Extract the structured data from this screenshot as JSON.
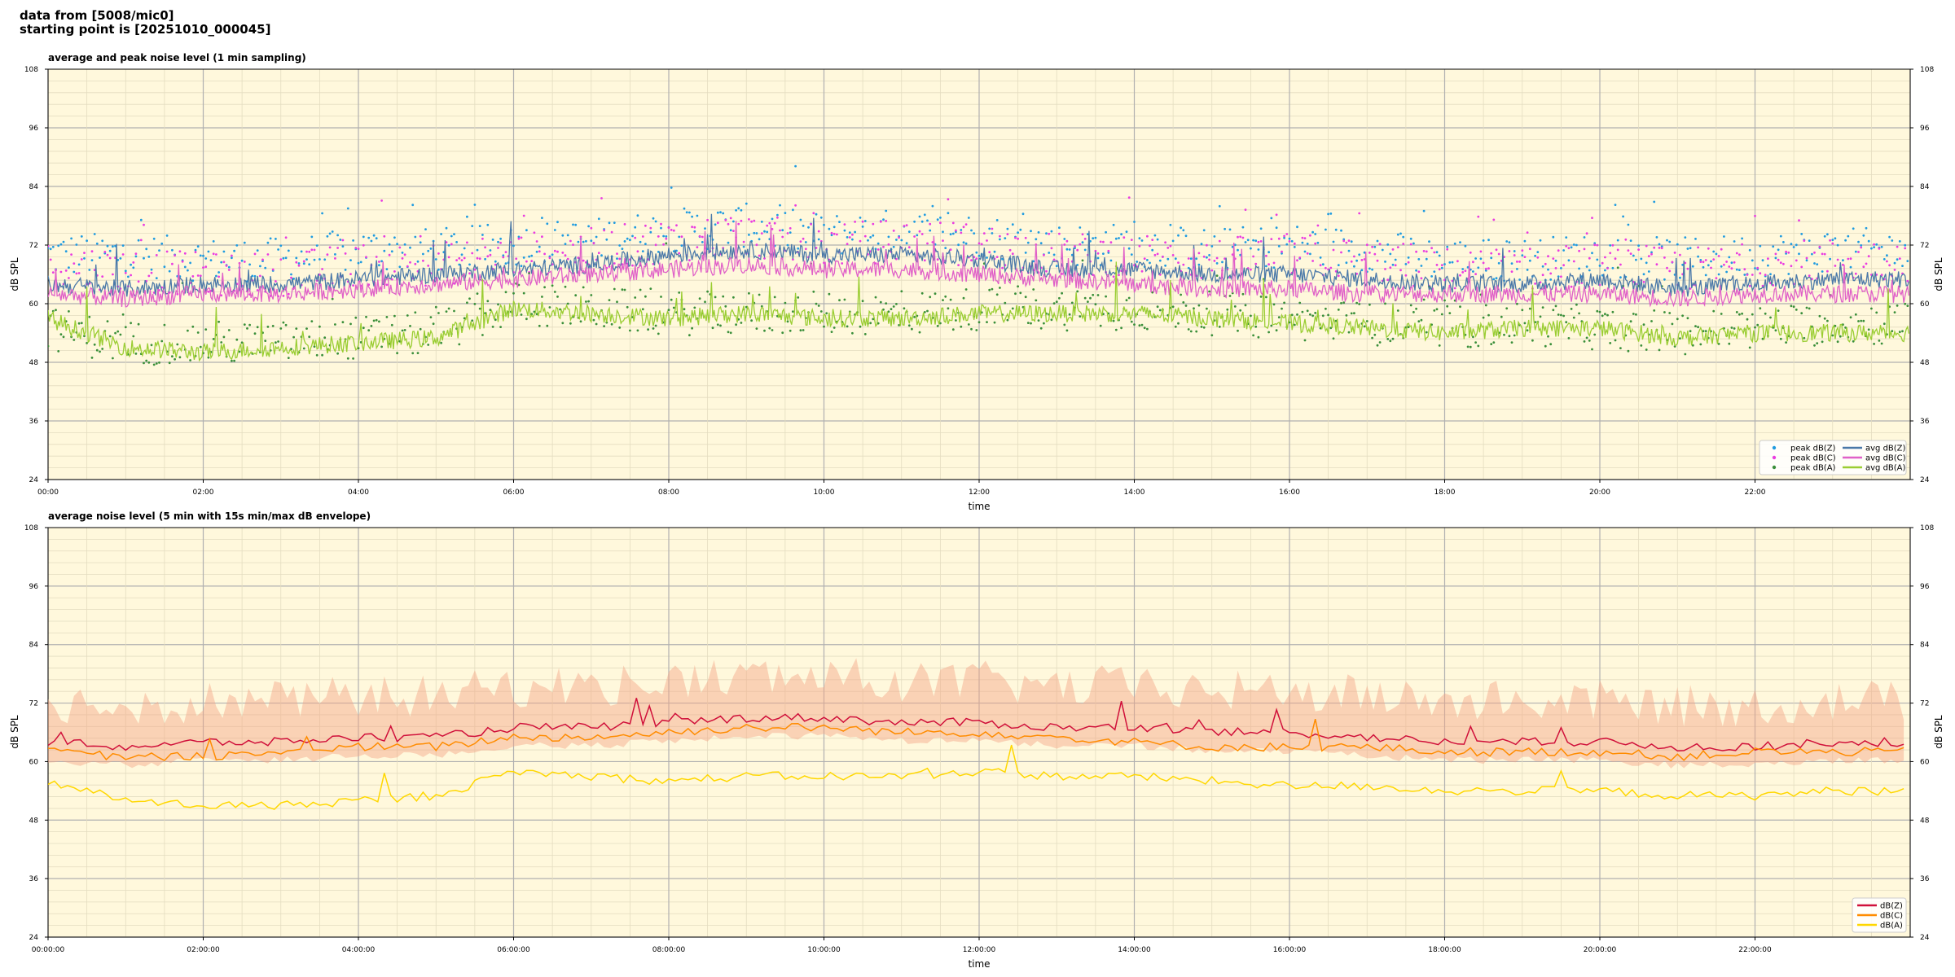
{
  "header": {
    "line1": "data from [5008/mic0]",
    "line2": "starting point is [20251010_000045]"
  },
  "colors": {
    "bg": "#fff8dc",
    "peak_z": "#1f9be0",
    "peak_c": "#ea3de0",
    "peak_a": "#3a8f3a",
    "avg_z": "#4a78a8",
    "avg_c": "#e060c8",
    "avg_a": "#9acd32",
    "dbz": "#d0103a",
    "dbc": "#ff8c00",
    "dba": "#ffd700",
    "envelope": "#f4a585"
  },
  "chart_data": [
    {
      "type": "line",
      "title": "average and peak noise level (1 min sampling)",
      "xlabel": "time",
      "ylabel": "dB SPL",
      "ylim": [
        24,
        108
      ],
      "xlim_hours": [
        0,
        24
      ],
      "grid": true,
      "legend_position": "lower-right",
      "xticks": [
        "00:00",
        "02:00",
        "04:00",
        "06:00",
        "08:00",
        "10:00",
        "12:00",
        "14:00",
        "16:00",
        "18:00",
        "20:00",
        "22:00"
      ],
      "yticks": [
        "24",
        "36",
        "48",
        "60",
        "72",
        "84",
        "96",
        "108"
      ],
      "series": [
        {
          "name": "peak dB(Z)",
          "kind": "scatter",
          "color_key": "peak_z",
          "base": [
            70,
            70,
            69,
            69,
            71,
            71,
            72,
            73,
            75,
            76,
            74,
            75,
            74,
            72,
            72,
            71,
            72,
            71,
            69,
            69,
            70,
            69,
            70,
            71
          ]
        },
        {
          "name": "peak dB(C)",
          "kind": "scatter",
          "color_key": "peak_c",
          "base": [
            68,
            67,
            66,
            66,
            68,
            68,
            70,
            71,
            73,
            74,
            72,
            73,
            72,
            70,
            70,
            69,
            70,
            69,
            67,
            67,
            68,
            67,
            68,
            69
          ]
        },
        {
          "name": "peak dB(A)",
          "kind": "scatter",
          "color_key": "peak_a",
          "base": [
            55,
            52,
            52,
            52,
            53,
            54,
            60,
            59,
            58,
            58,
            58,
            58,
            59,
            59,
            59,
            58,
            57,
            56,
            55,
            56,
            55,
            54,
            55,
            56
          ]
        },
        {
          "name": "avg dB(Z)",
          "kind": "line",
          "color_key": "avg_z",
          "base": [
            64,
            63,
            64,
            64,
            65,
            66,
            67,
            68,
            70,
            71,
            70,
            70,
            69,
            67,
            67,
            66,
            66,
            65,
            64,
            64,
            65,
            63,
            64,
            65
          ]
        },
        {
          "name": "avg dB(C)",
          "kind": "line",
          "color_key": "avg_c",
          "base": [
            62,
            61,
            62,
            62,
            63,
            64,
            65,
            66,
            67,
            68,
            67,
            67,
            66,
            65,
            64,
            63,
            63,
            62,
            62,
            62,
            62,
            61,
            62,
            62
          ]
        },
        {
          "name": "avg dB(A)",
          "kind": "line",
          "color_key": "avg_a",
          "base": [
            57,
            51,
            50,
            51,
            52,
            53,
            59,
            58,
            57,
            58,
            57,
            57,
            58,
            58,
            58,
            57,
            56,
            55,
            54,
            55,
            55,
            53,
            54,
            54
          ]
        }
      ]
    },
    {
      "type": "line",
      "title": "average noise level (5 min with 15s min/max dB envelope)",
      "xlabel": "time",
      "ylabel": "dB SPL",
      "ylim": [
        24,
        108
      ],
      "xlim_hours": [
        0,
        24
      ],
      "grid": true,
      "legend_position": "lower-right",
      "xticks": [
        "00:00:00",
        "02:00:00",
        "04:00:00",
        "06:00:00",
        "08:00:00",
        "10:00:00",
        "12:00:00",
        "14:00:00",
        "16:00:00",
        "18:00:00",
        "20:00:00",
        "22:00:00"
      ],
      "yticks": [
        "24",
        "36",
        "48",
        "60",
        "72",
        "84",
        "96",
        "108"
      ],
      "series": [
        {
          "name": "dB(Z)",
          "color_key": "dbz",
          "base": [
            64,
            63,
            64,
            64,
            65,
            65,
            67,
            67,
            68,
            69,
            69,
            68,
            68,
            67,
            67,
            66,
            66,
            65,
            64,
            64,
            64,
            63,
            63,
            64
          ]
        },
        {
          "name": "dB(C)",
          "color_key": "dbc",
          "base": [
            62,
            61,
            61,
            62,
            63,
            63,
            65,
            65,
            66,
            67,
            67,
            66,
            66,
            65,
            64,
            63,
            63,
            63,
            62,
            62,
            62,
            61,
            62,
            62
          ]
        },
        {
          "name": "dB(A)",
          "color_key": "dba",
          "base": [
            56,
            52,
            51,
            51,
            52,
            53,
            58,
            57,
            56,
            57,
            57,
            57,
            58,
            57,
            57,
            56,
            55,
            55,
            54,
            54,
            54,
            53,
            53,
            54
          ]
        }
      ],
      "envelope": {
        "min_offset": -3,
        "max_offset": 8
      }
    }
  ]
}
